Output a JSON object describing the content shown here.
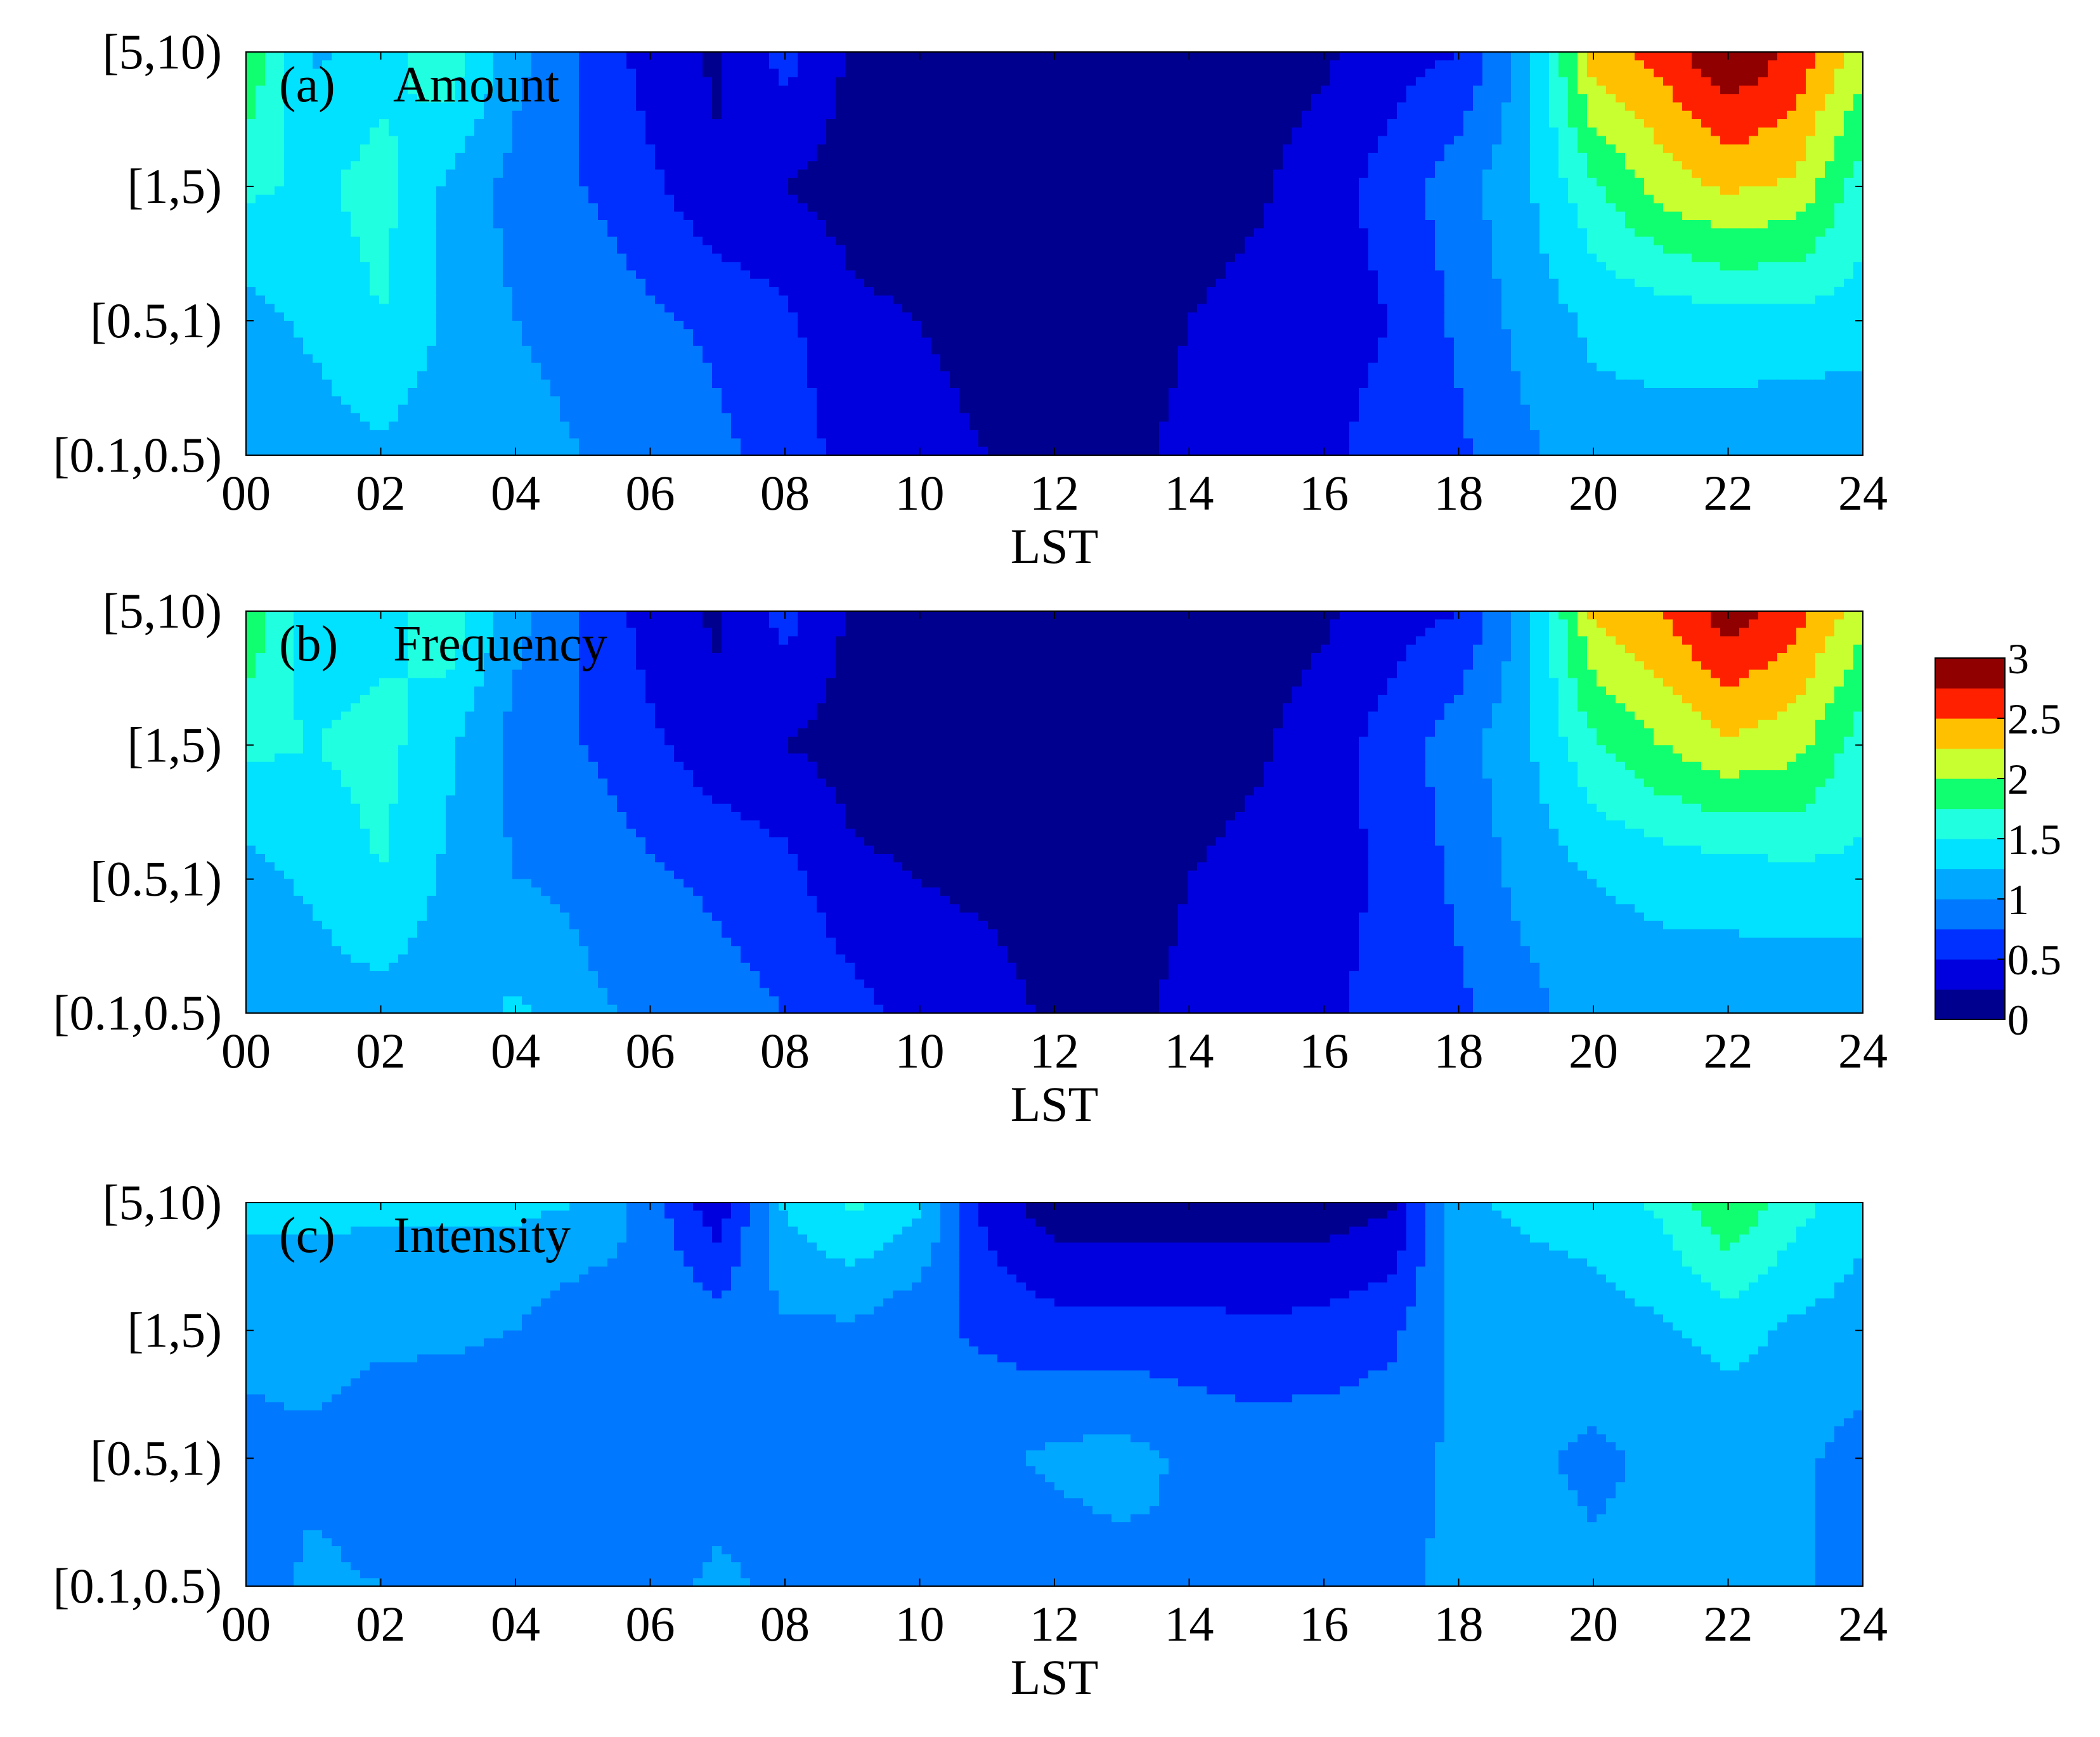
{
  "colormap": {
    "vmin": 0,
    "vmax": 3,
    "levels": [
      0,
      0.25,
      0.5,
      0.75,
      1,
      1.25,
      1.5,
      1.75,
      2,
      2.25,
      2.5,
      2.75,
      3
    ],
    "fill_colors": [
      "#00008f",
      "#0000df",
      "#0030ff",
      "#0078ff",
      "#00a8ff",
      "#00e2ff",
      "#20ffe0",
      "#10ff70",
      "#c8ff30",
      "#ffc000",
      "#ff2000",
      "#900000"
    ],
    "tick_labels": [
      "0",
      "0.5",
      "1",
      "1.5",
      "2",
      "2.5",
      "3"
    ]
  },
  "chart_data": [
    {
      "type": "heatmap",
      "panel_label": "(a)",
      "title": "Amount",
      "xlabel": "LST",
      "ylabel": "",
      "x_ticks": [
        "00",
        "02",
        "04",
        "06",
        "08",
        "10",
        "12",
        "14",
        "16",
        "18",
        "20",
        "22",
        "24"
      ],
      "xlim": [
        0,
        24
      ],
      "y_categories": [
        "[0.1,0.5)",
        "[0.5,1)",
        "[1,5)",
        "[5,10)"
      ],
      "x": [
        0,
        1,
        2,
        3,
        4,
        5,
        6,
        7,
        8,
        9,
        10,
        11,
        12,
        13,
        14,
        15,
        16,
        17,
        18,
        19,
        20,
        21,
        22,
        23,
        24
      ],
      "values": [
        [
          1.1,
          1.12,
          1.2,
          1.1,
          1.05,
          1.0,
          0.95,
          0.8,
          0.65,
          0.4,
          0.3,
          0.25,
          0.2,
          0.2,
          0.3,
          0.4,
          0.45,
          0.6,
          0.7,
          0.95,
          1.15,
          1.15,
          1.1,
          1.05,
          1.0
        ],
        [
          1.15,
          1.3,
          1.5,
          1.2,
          1.0,
          0.95,
          0.8,
          0.7,
          0.55,
          0.3,
          0.25,
          0.2,
          0.15,
          0.15,
          0.25,
          0.35,
          0.4,
          0.5,
          0.8,
          1.1,
          1.3,
          1.35,
          1.4,
          1.4,
          1.4
        ],
        [
          1.55,
          1.45,
          1.6,
          1.2,
          0.9,
          0.75,
          0.55,
          0.3,
          0.25,
          0.15,
          0.1,
          0.05,
          0.05,
          0.05,
          0.1,
          0.2,
          0.4,
          0.6,
          0.9,
          1.2,
          1.7,
          2.1,
          2.3,
          2.2,
          1.6
        ],
        [
          2.0,
          1.2,
          1.4,
          1.7,
          1.1,
          0.7,
          0.4,
          0.2,
          0.6,
          0.2,
          0.1,
          0.1,
          0.1,
          0.1,
          0.1,
          0.1,
          0.2,
          0.4,
          0.5,
          1.1,
          2.4,
          2.6,
          3.0,
          2.7,
          2.1
        ]
      ]
    },
    {
      "type": "heatmap",
      "panel_label": "(b)",
      "title": "Frequency",
      "xlabel": "LST",
      "ylabel": "",
      "x_ticks": [
        "00",
        "02",
        "04",
        "06",
        "08",
        "10",
        "12",
        "14",
        "16",
        "18",
        "20",
        "22",
        "24"
      ],
      "xlim": [
        0,
        24
      ],
      "y_categories": [
        "[0.1,0.5)",
        "[0.5,1)",
        "[1,5)",
        "[5,10)"
      ],
      "x": [
        0,
        1,
        2,
        3,
        4,
        5,
        6,
        7,
        8,
        9,
        10,
        11,
        12,
        13,
        14,
        15,
        16,
        17,
        18,
        19,
        20,
        21,
        22,
        23,
        24
      ],
      "values": [
        [
          1.1,
          1.1,
          1.15,
          1.1,
          1.3,
          1.05,
          0.95,
          0.85,
          0.75,
          0.6,
          0.4,
          0.35,
          0.2,
          0.2,
          0.3,
          0.4,
          0.45,
          0.6,
          0.7,
          0.9,
          1.15,
          1.15,
          1.1,
          1.05,
          1.0
        ],
        [
          1.15,
          1.3,
          1.5,
          1.2,
          1.0,
          0.95,
          0.8,
          0.7,
          0.6,
          0.3,
          0.25,
          0.2,
          0.15,
          0.15,
          0.25,
          0.35,
          0.4,
          0.55,
          0.8,
          1.1,
          1.25,
          1.3,
          1.35,
          1.4,
          1.45
        ],
        [
          1.55,
          1.5,
          1.6,
          1.3,
          0.9,
          0.75,
          0.55,
          0.35,
          0.25,
          0.15,
          0.1,
          0.05,
          0.05,
          0.05,
          0.1,
          0.2,
          0.4,
          0.6,
          0.9,
          1.2,
          1.7,
          2.0,
          2.2,
          2.1,
          1.6
        ],
        [
          2.0,
          1.3,
          1.4,
          1.7,
          1.1,
          0.7,
          0.4,
          0.2,
          0.6,
          0.2,
          0.1,
          0.1,
          0.1,
          0.1,
          0.1,
          0.1,
          0.2,
          0.4,
          0.5,
          1.1,
          2.3,
          2.5,
          2.9,
          2.6,
          2.1
        ]
      ]
    },
    {
      "type": "heatmap",
      "panel_label": "(c)",
      "title": "Intensity",
      "xlabel": "LST",
      "ylabel": "",
      "x_ticks": [
        "00",
        "02",
        "04",
        "06",
        "08",
        "10",
        "12",
        "14",
        "16",
        "18",
        "20",
        "22",
        "24"
      ],
      "xlim": [
        0,
        24
      ],
      "y_categories": [
        "[0.1,0.5)",
        "[0.5,1)",
        "[1,5)",
        "[5,10)"
      ],
      "x": [
        0,
        1,
        2,
        3,
        4,
        5,
        6,
        7,
        8,
        9,
        10,
        11,
        12,
        13,
        14,
        15,
        16,
        17,
        18,
        19,
        20,
        21,
        22,
        23,
        24
      ],
      "values": [
        [
          0.9,
          1.05,
          1.0,
          0.95,
          0.85,
          0.8,
          0.9,
          1.05,
          0.95,
          0.95,
          0.9,
          0.8,
          0.85,
          0.9,
          1.0,
          0.9,
          0.85,
          0.95,
          1.05,
          1.05,
          1.05,
          1.05,
          1.05,
          1.05,
          0.9
        ],
        [
          0.9,
          0.95,
          0.85,
          0.8,
          0.8,
          0.9,
          0.85,
          0.9,
          0.9,
          0.9,
          0.9,
          0.95,
          1.05,
          1.1,
          0.95,
          0.9,
          0.9,
          0.9,
          1.05,
          1.05,
          0.95,
          1.05,
          1.05,
          1.05,
          0.9
        ],
        [
          1.1,
          1.1,
          1.05,
          1.05,
          1.0,
          0.8,
          0.95,
          0.9,
          0.95,
          0.95,
          0.8,
          0.7,
          0.6,
          0.6,
          0.6,
          0.55,
          0.6,
          0.7,
          1.05,
          1.1,
          1.15,
          1.2,
          1.35,
          1.2,
          1.15
        ],
        [
          1.3,
          1.3,
          1.3,
          1.3,
          1.3,
          1.25,
          0.9,
          0.3,
          1.3,
          1.55,
          1.3,
          0.4,
          0.1,
          0.1,
          0.1,
          0.1,
          0.1,
          0.2,
          1.2,
          1.3,
          1.35,
          1.55,
          2.0,
          1.6,
          1.3
        ]
      ]
    }
  ]
}
